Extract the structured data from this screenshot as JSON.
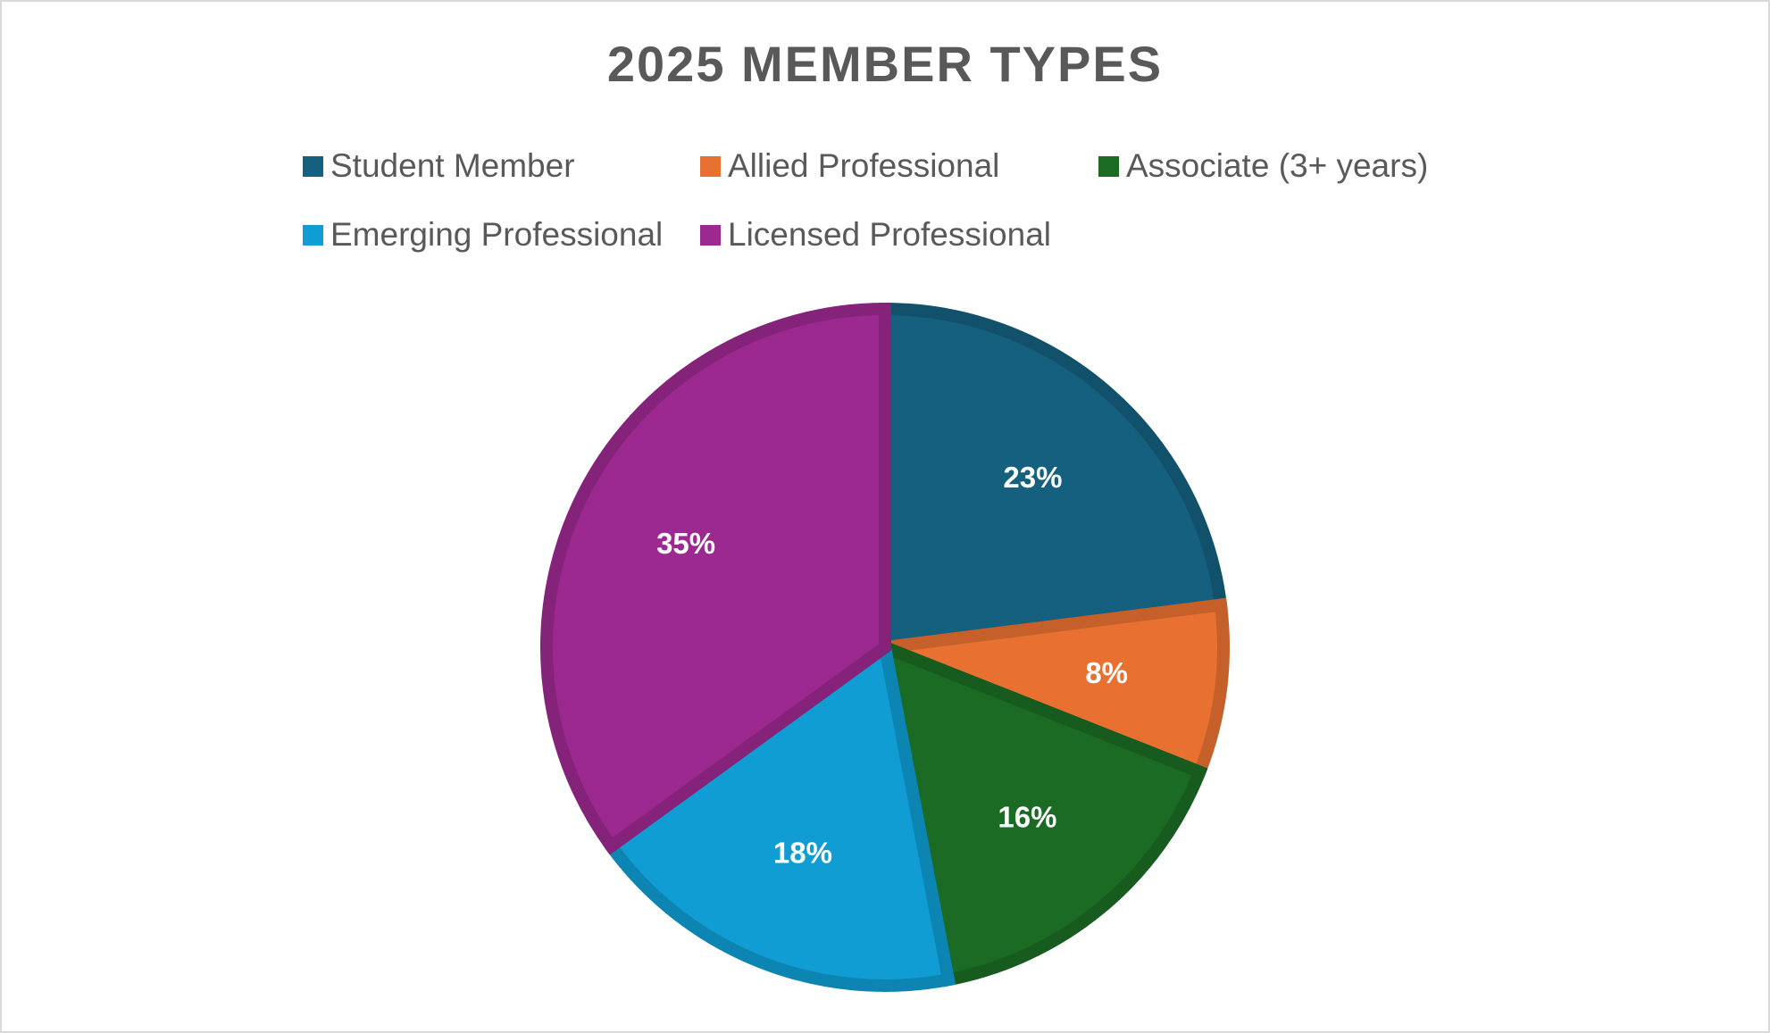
{
  "chart_data": {
    "type": "pie",
    "title": "2025 MEMBER TYPES",
    "categories": [
      "Student Member",
      "Allied Professional",
      "Associate (3+ years)",
      "Emerging Professional",
      "Licensed Professional"
    ],
    "values": [
      23,
      8,
      16,
      18,
      35
    ],
    "value_labels": [
      "23%",
      "8%",
      "16%",
      "18%",
      "35%"
    ],
    "colors": [
      "#155f7f",
      "#e87131",
      "#1b6b25",
      "#0f9dd3",
      "#9c298f"
    ],
    "legend": "top"
  }
}
